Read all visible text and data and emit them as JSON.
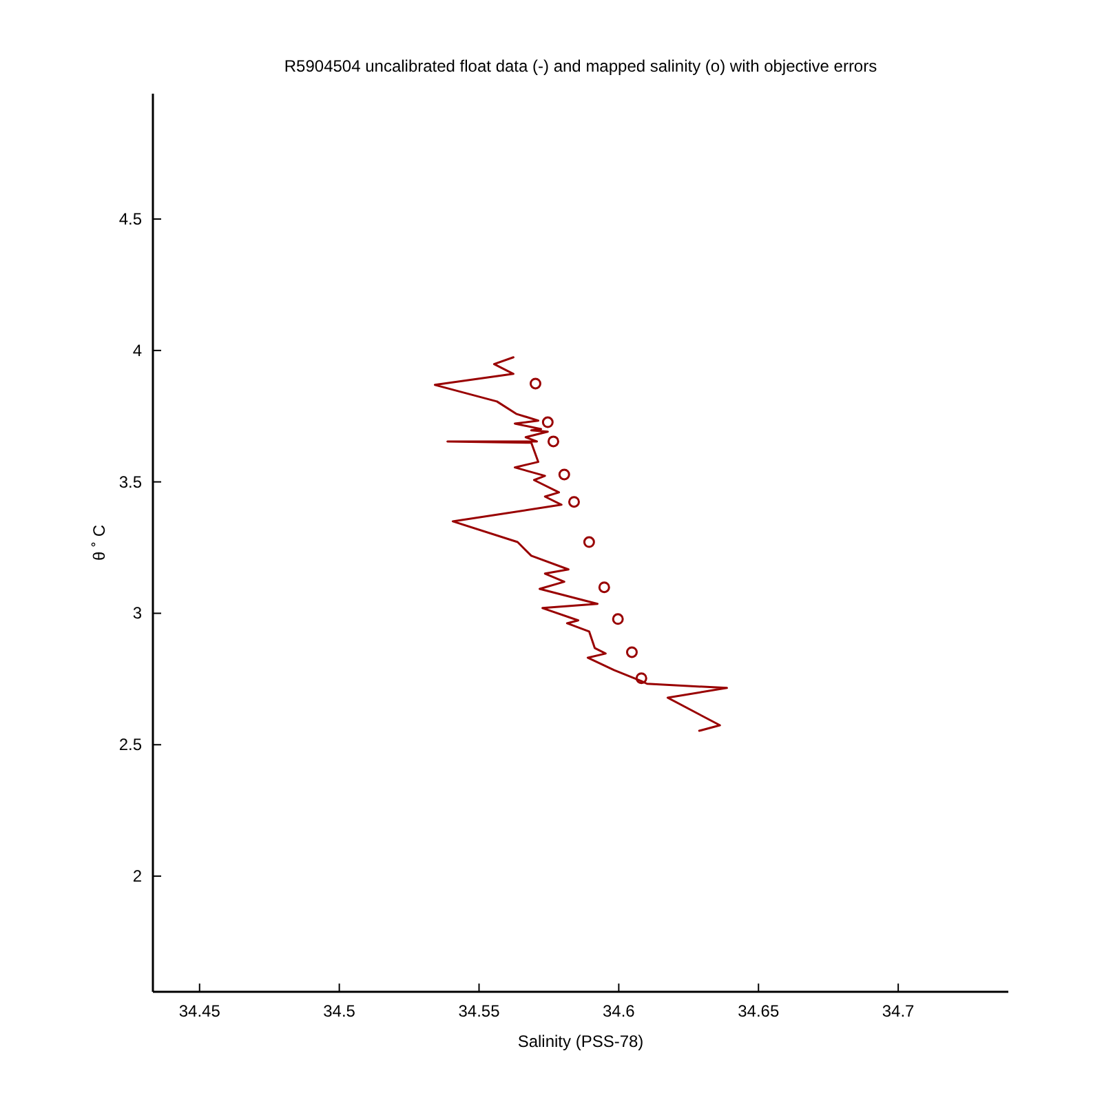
{
  "chart_data": {
    "type": "line",
    "title": "R5904504 uncalibrated float data (-) and mapped salinity (o) with objective errors",
    "xlabel": "Salinity (PSS-78)",
    "ylabel": "θ ˚ C",
    "xlim": [
      34.4333,
      34.7394
    ],
    "ylim": [
      1.56,
      4.977
    ],
    "xticks": [
      34.45,
      34.5,
      34.55,
      34.6,
      34.65,
      34.7
    ],
    "yticks": [
      2,
      2.5,
      3,
      3.5,
      4,
      4.5
    ],
    "grid": false,
    "series": [
      {
        "color": "#990000",
        "line_style": "solid",
        "marker": "none",
        "x": [
          34.5623,
          34.5554,
          34.5623,
          34.5342,
          34.5564,
          34.5633,
          34.5712,
          34.5628,
          34.5722,
          34.5687,
          34.5746,
          34.5667,
          34.5707,
          34.5387,
          34.5687,
          34.5712,
          34.5628,
          34.5736,
          34.5697,
          34.5786,
          34.5736,
          34.5795,
          34.5406,
          34.5638,
          34.5687,
          34.582,
          34.5736,
          34.5805,
          34.5717,
          34.5924,
          34.5727,
          34.5855,
          34.5815,
          34.5894,
          34.5914,
          34.5953,
          34.5889,
          34.5983,
          34.6081,
          34.6101,
          34.6387,
          34.6175,
          34.6362,
          34.6288
        ],
        "values": [
          3.974,
          3.948,
          3.911,
          3.869,
          3.806,
          3.759,
          3.733,
          3.722,
          3.701,
          3.696,
          3.691,
          3.67,
          3.654,
          3.654,
          3.649,
          3.576,
          3.555,
          3.523,
          3.507,
          3.46,
          3.444,
          3.413,
          3.35,
          3.271,
          3.219,
          3.167,
          3.151,
          3.12,
          3.093,
          3.036,
          3.02,
          2.973,
          2.962,
          2.931,
          2.868,
          2.847,
          2.831,
          2.784,
          2.742,
          2.732,
          2.716,
          2.679,
          2.574,
          2.553
        ]
      },
      {
        "type": "scatter",
        "color": "#990000",
        "marker": "circle",
        "x": [
          34.5702,
          34.5746,
          34.5766,
          34.5805,
          34.584,
          34.5894,
          34.5948,
          34.5997,
          34.6047,
          34.6081
        ],
        "values": [
          3.874,
          3.727,
          3.654,
          3.528,
          3.424,
          3.271,
          3.099,
          2.978,
          2.852,
          2.753
        ]
      }
    ]
  }
}
